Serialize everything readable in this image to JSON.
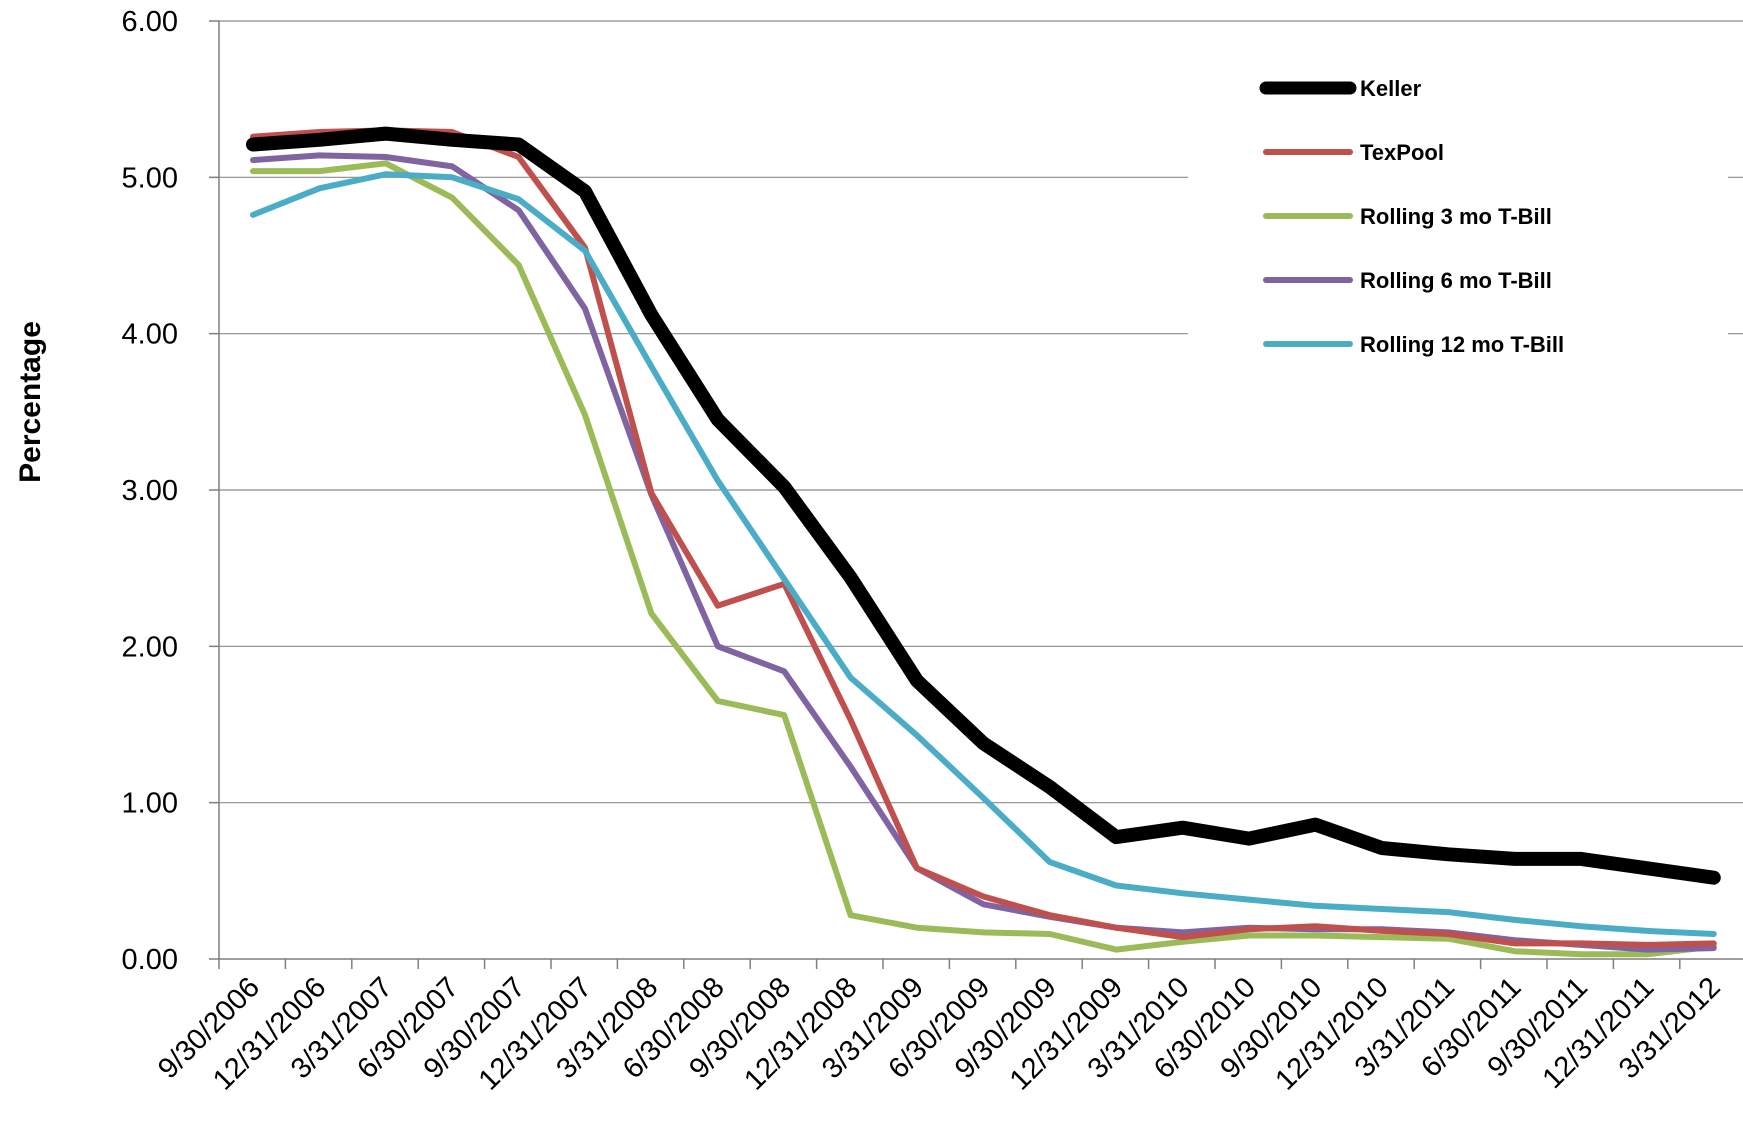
{
  "chart_data": {
    "type": "line",
    "title": "",
    "xlabel": "",
    "ylabel": "Percentage",
    "ylim": [
      0,
      6
    ],
    "yticks": [
      "0.00",
      "1.00",
      "2.00",
      "3.00",
      "4.00",
      "5.00",
      "6.00"
    ],
    "grid": "horizontal",
    "legend_position": "top-right",
    "categories": [
      "9/30/2006",
      "12/31/2006",
      "3/31/2007",
      "6/30/2007",
      "9/30/2007",
      "12/31/2007",
      "3/31/2008",
      "6/30/2008",
      "9/30/2008",
      "12/31/2008",
      "3/31/2009",
      "6/30/2009",
      "9/30/2009",
      "12/31/2009",
      "3/31/2010",
      "6/30/2010",
      "9/30/2010",
      "12/31/2010",
      "3/31/2011",
      "6/30/2011",
      "9/30/2011",
      "12/31/2011",
      "3/31/2012"
    ],
    "series": [
      {
        "name": "Keller",
        "color": "#000000",
        "values": [
          5.21,
          5.24,
          5.28,
          5.24,
          5.21,
          4.91,
          4.12,
          3.45,
          3.02,
          2.44,
          1.78,
          1.38,
          1.1,
          0.78,
          0.84,
          0.77,
          0.86,
          0.71,
          0.67,
          0.64,
          0.64,
          0.58,
          0.52
        ]
      },
      {
        "name": "TexPool",
        "color": "#C0504D",
        "values": [
          5.26,
          5.29,
          5.3,
          5.29,
          5.13,
          4.55,
          2.98,
          2.26,
          2.4,
          1.53,
          0.58,
          0.4,
          0.28,
          0.2,
          0.14,
          0.19,
          0.21,
          0.18,
          0.16,
          0.1,
          0.1,
          0.09,
          0.1
        ]
      },
      {
        "name": "Rolling 3 mo T-Bill",
        "color": "#9BBB59",
        "values": [
          5.04,
          5.04,
          5.09,
          4.87,
          4.44,
          3.48,
          2.21,
          1.65,
          1.56,
          0.28,
          0.2,
          0.17,
          0.16,
          0.06,
          0.11,
          0.15,
          0.15,
          0.14,
          0.13,
          0.05,
          0.03,
          0.03,
          0.08
        ]
      },
      {
        "name": "Rolling 6 mo T-Bill",
        "color": "#8064A2",
        "values": [
          5.11,
          5.14,
          5.13,
          5.07,
          4.79,
          4.16,
          2.97,
          2.0,
          1.84,
          1.23,
          0.58,
          0.35,
          0.27,
          0.2,
          0.17,
          0.2,
          0.19,
          0.19,
          0.17,
          0.12,
          0.09,
          0.06,
          0.07
        ]
      },
      {
        "name": "Rolling 12 mo T-Bill",
        "color": "#4BACC6",
        "values": [
          4.76,
          4.93,
          5.02,
          5.0,
          4.86,
          4.53,
          3.79,
          3.06,
          2.43,
          1.8,
          1.43,
          1.03,
          0.62,
          0.47,
          0.42,
          0.38,
          0.34,
          0.32,
          0.3,
          0.25,
          0.21,
          0.18,
          0.16
        ]
      }
    ]
  }
}
